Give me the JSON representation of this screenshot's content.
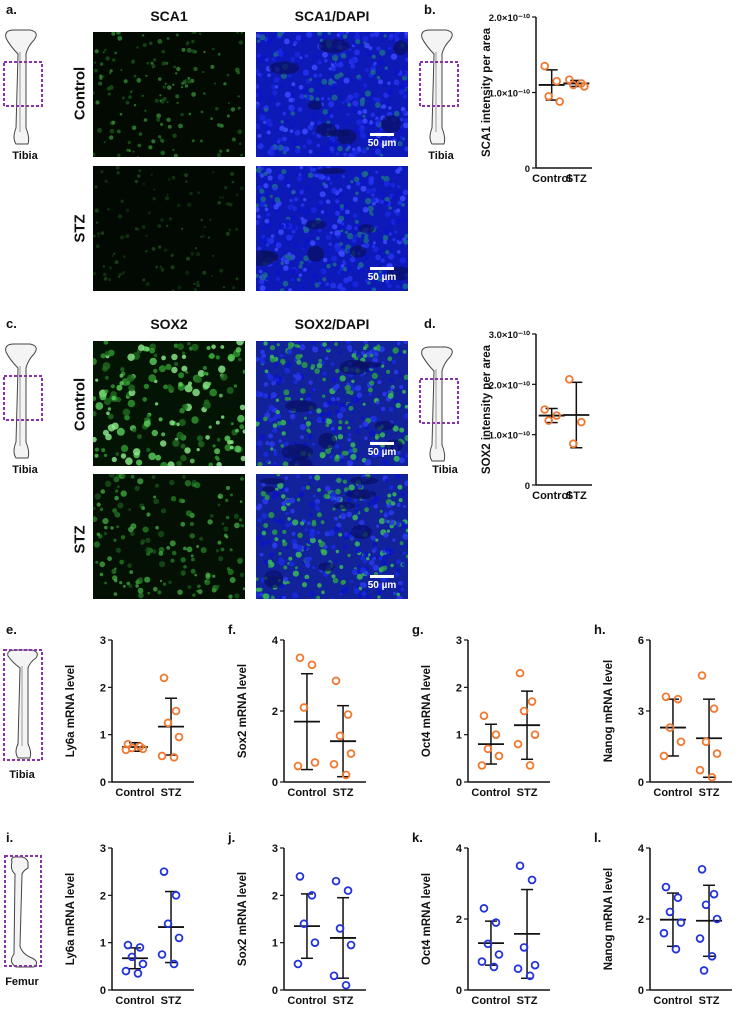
{
  "panels": {
    "a": {
      "letter": "a.",
      "col1": "SCA1",
      "col2": "SCA1/DAPI",
      "row1": "Control",
      "row2": "STZ",
      "bone": "Tibia",
      "scale": "50 µm"
    },
    "b": {
      "letter": "b."
    },
    "c": {
      "letter": "c.",
      "col1": "SOX2",
      "col2": "SOX2/DAPI",
      "row1": "Control",
      "row2": "STZ",
      "bone": "Tibia",
      "scale": "50 µm"
    },
    "d": {
      "letter": "d.",
      "bone": "Tibia"
    },
    "e": {
      "letter": "e.",
      "bone": "Tibia"
    },
    "f": {
      "letter": "f."
    },
    "g": {
      "letter": "g."
    },
    "h": {
      "letter": "h."
    },
    "i": {
      "letter": "i.",
      "bone": "Femur"
    },
    "j": {
      "letter": "j."
    },
    "k": {
      "letter": "k."
    },
    "l": {
      "letter": "l."
    }
  },
  "colors": {
    "tibia_points": "#f07830",
    "femur_points": "#2233dd",
    "bone_box": "#8833aa",
    "green": "#33aa33",
    "blue": "#1a22cc"
  },
  "chart_data": [
    {
      "id": "b",
      "type": "scatter",
      "ylabel": "SCA1 intensity per area",
      "categories": [
        "Control",
        "STZ"
      ],
      "yticks": [
        "0",
        "1.0×10⁻¹⁰",
        "2.0×10⁻¹⁰"
      ],
      "ylim": [
        0,
        2e-10
      ],
      "points": [
        [
          1.35e-10,
          1.15e-10,
          9.5e-11,
          8.8e-11
        ],
        [
          1.17e-10,
          1.12e-10,
          1.1e-10,
          1.08e-10
        ]
      ],
      "mean": [
        1.1e-10,
        1.12e-10
      ],
      "sd": [
        2e-11,
        4e-12
      ]
    },
    {
      "id": "d",
      "type": "scatter",
      "ylabel": "SOX2 intensity per area",
      "categories": [
        "Control",
        "STZ"
      ],
      "yticks": [
        "0",
        "1.0×10⁻¹⁰",
        "2.0×10⁻¹⁰",
        "3.0×10⁻¹⁰"
      ],
      "ylim": [
        0,
        3e-10
      ],
      "points": [
        [
          1.5e-10,
          1.38e-10,
          1.28e-10
        ],
        [
          2.1e-10,
          1.25e-10,
          8.2e-11
        ]
      ],
      "mean": [
        1.38e-10,
        1.39e-10
      ],
      "sd": [
        1.4e-11,
        6.5e-11
      ]
    },
    {
      "id": "e",
      "type": "scatter",
      "ylabel": "Ly6a mRNA level",
      "categories": [
        "Control",
        "STZ"
      ],
      "yticks": [
        "0",
        "1",
        "2",
        "3"
      ],
      "ylim": [
        0,
        3
      ],
      "points": [
        [
          0.8,
          0.75,
          0.72,
          0.7,
          0.68
        ],
        [
          2.2,
          1.5,
          1.25,
          0.95,
          0.55,
          0.52
        ]
      ],
      "mean": [
        0.74,
        1.17
      ],
      "sd": [
        0.09,
        0.6
      ]
    },
    {
      "id": "f",
      "type": "scatter",
      "ylabel": "Sox2 mRNA level",
      "categories": [
        "Control",
        "STZ"
      ],
      "yticks": [
        "0",
        "2",
        "4"
      ],
      "ylim": [
        0,
        4
      ],
      "points": [
        [
          3.5,
          3.3,
          2.1,
          0.55,
          0.45
        ],
        [
          2.85,
          1.9,
          1.3,
          0.8,
          0.5,
          0.2
        ]
      ],
      "mean": [
        1.7,
        1.15
      ],
      "sd": [
        1.35,
        1.0
      ]
    },
    {
      "id": "g",
      "type": "scatter",
      "ylabel": "Oct4 mRNA level",
      "categories": [
        "Control",
        "STZ"
      ],
      "yticks": [
        "0",
        "1",
        "2",
        "3"
      ],
      "ylim": [
        0,
        3
      ],
      "points": [
        [
          1.4,
          1.0,
          0.7,
          0.55,
          0.35
        ],
        [
          2.3,
          1.7,
          1.5,
          1.0,
          0.8,
          0.35
        ]
      ],
      "mean": [
        0.8,
        1.2
      ],
      "sd": [
        0.42,
        0.72
      ]
    },
    {
      "id": "h",
      "type": "scatter",
      "ylabel": "Nanog mRNA level",
      "categories": [
        "Control",
        "STZ"
      ],
      "yticks": [
        "0",
        "3",
        "6"
      ],
      "ylim": [
        0,
        6
      ],
      "points": [
        [
          3.6,
          3.5,
          2.3,
          1.7,
          1.1
        ],
        [
          4.5,
          3.1,
          1.7,
          1.2,
          0.5,
          0.2
        ]
      ],
      "mean": [
        2.3,
        1.85
      ],
      "sd": [
        1.2,
        1.65
      ]
    },
    {
      "id": "i",
      "type": "scatter",
      "ylabel": "Ly6a mRNA level",
      "categories": [
        "Control",
        "STZ"
      ],
      "yticks": [
        "0",
        "1",
        "2",
        "3"
      ],
      "ylim": [
        0,
        3
      ],
      "points": [
        [
          0.95,
          0.9,
          0.7,
          0.55,
          0.4,
          0.35
        ],
        [
          2.5,
          2.0,
          1.4,
          1.1,
          0.75,
          0.55
        ]
      ],
      "mean": [
        0.67,
        1.33
      ],
      "sd": [
        0.22,
        0.75
      ]
    },
    {
      "id": "j",
      "type": "scatter",
      "ylabel": "Sox2 mRNA level",
      "categories": [
        "Control",
        "STZ"
      ],
      "yticks": [
        "0",
        "1",
        "2",
        "3"
      ],
      "ylim": [
        0,
        3
      ],
      "points": [
        [
          2.4,
          2.0,
          1.4,
          1.0,
          0.55
        ],
        [
          2.3,
          2.1,
          1.3,
          0.95,
          0.3,
          0.1
        ]
      ],
      "mean": [
        1.35,
        1.1
      ],
      "sd": [
        0.68,
        0.85
      ]
    },
    {
      "id": "k",
      "type": "scatter",
      "ylabel": "Oct4 mRNA level",
      "categories": [
        "Control",
        "STZ"
      ],
      "yticks": [
        "0",
        "2",
        "4"
      ],
      "ylim": [
        0,
        4
      ],
      "points": [
        [
          2.3,
          1.9,
          1.3,
          1.0,
          0.8,
          0.65
        ],
        [
          3.5,
          3.1,
          1.2,
          0.7,
          0.6,
          0.4
        ]
      ],
      "mean": [
        1.32,
        1.58
      ],
      "sd": [
        0.62,
        1.25
      ]
    },
    {
      "id": "l",
      "type": "scatter",
      "ylabel": "Nanog mRNA level",
      "categories": [
        "Control",
        "STZ"
      ],
      "yticks": [
        "0",
        "2",
        "4"
      ],
      "ylim": [
        0,
        4
      ],
      "points": [
        [
          2.9,
          2.6,
          2.2,
          1.9,
          1.6,
          1.15
        ],
        [
          3.4,
          2.7,
          2.4,
          2.0,
          1.45,
          0.95,
          0.55
        ]
      ],
      "mean": [
        1.98,
        1.95
      ],
      "sd": [
        0.75,
        1.0
      ]
    }
  ]
}
